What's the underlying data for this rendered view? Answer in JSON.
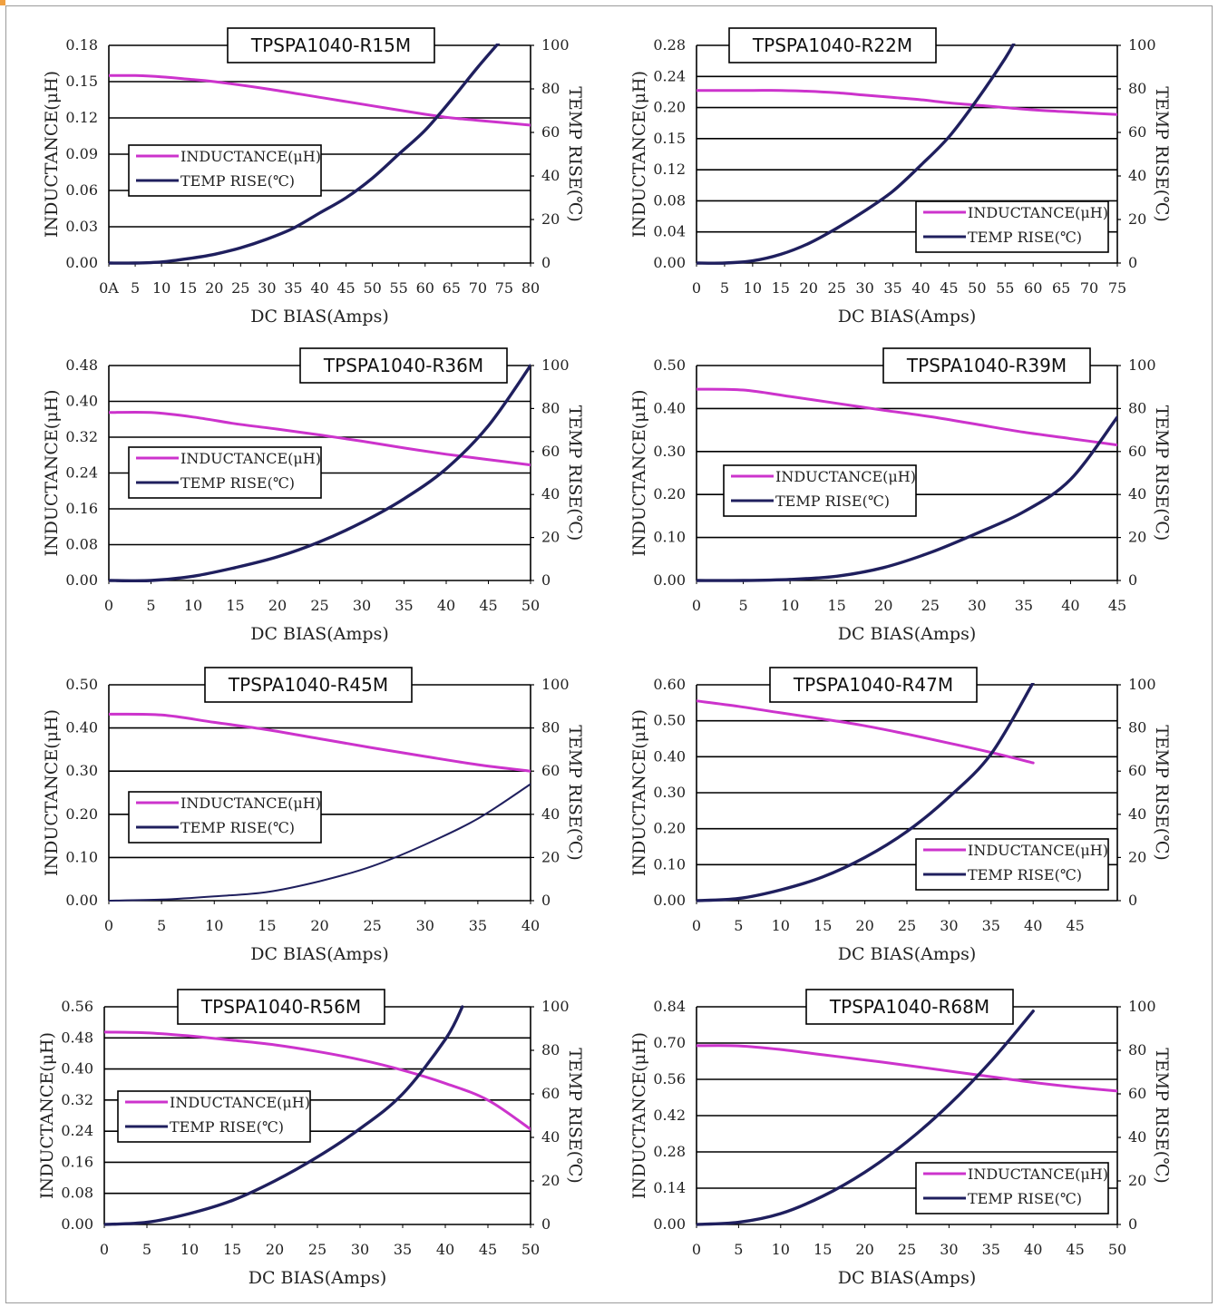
{
  "colors": {
    "inductance": "#cc33cc",
    "temp": "#1f1f5e",
    "grid": "#000000"
  },
  "chart_data": [
    {
      "type": "line",
      "title": "TPSPA1040-R15M",
      "xlabel": "DC BIAS(Amps)",
      "ylabel": "INDUCTANCE(μH)",
      "y2label": "TEMP RISE(℃)",
      "xlim": [
        0,
        80
      ],
      "ylim": [
        0,
        0.18
      ],
      "y2lim": [
        0,
        100
      ],
      "xticks": [
        "0A",
        "5",
        "10",
        "15",
        "20",
        "25",
        "30",
        "35",
        "40",
        "45",
        "50",
        "55",
        "60",
        "65",
        "70",
        "75",
        "80"
      ],
      "yticks": [
        "0.00",
        "0.03",
        "0.06",
        "0.09",
        "0.12",
        "0.15",
        "0.18"
      ],
      "y2ticks": [
        "0",
        "20",
        "40",
        "60",
        "80",
        "100"
      ],
      "legend": "left",
      "series": [
        {
          "name": "INDUCTANCE(μH)",
          "axis": "left",
          "x": [
            0,
            5,
            10,
            15,
            20,
            30,
            40,
            50,
            60,
            65,
            70,
            80
          ],
          "y": [
            0.155,
            0.155,
            0.154,
            0.152,
            0.15,
            0.144,
            0.137,
            0.13,
            0.123,
            0.12,
            0.118,
            0.114
          ]
        },
        {
          "name": "TEMP RISE(℃)",
          "axis": "right",
          "x": [
            0,
            5,
            10,
            15,
            20,
            25,
            30,
            35,
            40,
            45,
            50,
            55,
            60,
            65,
            70,
            75
          ],
          "y": [
            0,
            0,
            0.5,
            2,
            4,
            7,
            11,
            16,
            23,
            30,
            39,
            50,
            61,
            75,
            90,
            104
          ]
        }
      ]
    },
    {
      "type": "line",
      "title": "TPSPA1040-R22M",
      "xlabel": "DC BIAS(Amps)",
      "ylabel": "INDUCTANCE(μH)",
      "y2label": "TEMP RISE(℃)",
      "xlim": [
        0,
        75
      ],
      "ylim": [
        0,
        0.28
      ],
      "y2lim": [
        0,
        100
      ],
      "xticks": [
        "0",
        "5",
        "10",
        "15",
        "20",
        "25",
        "30",
        "35",
        "40",
        "45",
        "50",
        "55",
        "60",
        "65",
        "70",
        "75"
      ],
      "yticks": [
        "0.00",
        "0.04",
        "0.08",
        "0.12",
        "0.15",
        "0.20",
        "0.24",
        "0.28"
      ],
      "y2ticks": [
        "0",
        "20",
        "40",
        "60",
        "80",
        "100"
      ],
      "legend": "bottom-right",
      "series": [
        {
          "name": "INDUCTANCE(μH)",
          "axis": "left",
          "x": [
            0,
            5,
            10,
            15,
            20,
            25,
            30,
            35,
            40,
            45,
            50,
            55,
            60,
            65,
            70,
            75
          ],
          "y": [
            0.222,
            0.222,
            0.222,
            0.222,
            0.221,
            0.219,
            0.216,
            0.213,
            0.21,
            0.206,
            0.203,
            0.2,
            0.197,
            0.195,
            0.193,
            0.191
          ]
        },
        {
          "name": "TEMP RISE(℃)",
          "axis": "right",
          "x": [
            0,
            5,
            10,
            15,
            20,
            25,
            30,
            35,
            40,
            45,
            50,
            55,
            57
          ],
          "y": [
            0,
            0,
            1,
            4,
            9,
            16,
            24,
            33,
            45,
            58,
            75,
            94,
            103
          ]
        }
      ]
    },
    {
      "type": "line",
      "title": "TPSPA1040-R36M",
      "xlabel": "DC BIAS(Amps)",
      "ylabel": "INDUCTANCE(μH)",
      "y2label": "TEMP RISE(℃)",
      "xlim": [
        0,
        50
      ],
      "ylim": [
        0,
        0.48
      ],
      "y2lim": [
        0,
        100
      ],
      "xticks": [
        "0",
        "5",
        "10",
        "15",
        "20",
        "25",
        "30",
        "35",
        "40",
        "45",
        "50"
      ],
      "yticks": [
        "0.00",
        "0.08",
        "0.16",
        "0.24",
        "0.32",
        "0.40",
        "0.48"
      ],
      "y2ticks": [
        "0",
        "20",
        "40",
        "60",
        "80",
        "100"
      ],
      "legend": "left",
      "series": [
        {
          "name": "INDUCTANCE(μH)",
          "axis": "left",
          "x": [
            0,
            5,
            10,
            15,
            20,
            25,
            30,
            35,
            40,
            45,
            50
          ],
          "y": [
            0.375,
            0.375,
            0.365,
            0.35,
            0.338,
            0.325,
            0.311,
            0.296,
            0.282,
            0.27,
            0.258
          ]
        },
        {
          "name": "TEMP RISE(℃)",
          "axis": "right",
          "x": [
            0,
            5,
            10,
            15,
            20,
            25,
            30,
            35,
            40,
            45,
            50
          ],
          "y": [
            0,
            0,
            2,
            6,
            11,
            18,
            27,
            38,
            52,
            72,
            100
          ]
        }
      ]
    },
    {
      "type": "line",
      "title": "TPSPA1040-R39M",
      "xlabel": "DC BIAS(Amps)",
      "ylabel": "INDUCTANCE(μH)",
      "y2label": "TEMP RISE(℃)",
      "xlim": [
        0,
        45
      ],
      "ylim": [
        0,
        0.5
      ],
      "y2lim": [
        0,
        100
      ],
      "xticks": [
        "0",
        "5",
        "10",
        "15",
        "20",
        "25",
        "30",
        "35",
        "40",
        "45"
      ],
      "yticks": [
        "0.00",
        "0.10",
        "0.20",
        "0.30",
        "0.40",
        "0.50"
      ],
      "y2ticks": [
        "0",
        "20",
        "40",
        "60",
        "80",
        "100"
      ],
      "legend": "left",
      "series": [
        {
          "name": "INDUCTANCE(μH)",
          "axis": "left",
          "x": [
            0,
            5,
            10,
            15,
            20,
            25,
            30,
            35,
            40,
            45
          ],
          "y": [
            0.445,
            0.443,
            0.428,
            0.412,
            0.396,
            0.381,
            0.363,
            0.345,
            0.33,
            0.315
          ]
        },
        {
          "name": "TEMP RISE(℃)",
          "axis": "right",
          "x": [
            0,
            5,
            10,
            15,
            20,
            25,
            30,
            35,
            40,
            45
          ],
          "y": [
            0,
            0,
            0.5,
            2,
            6,
            13,
            22,
            32,
            47,
            76
          ]
        }
      ]
    },
    {
      "type": "line",
      "title": "TPSPA1040-R45M",
      "xlabel": "DC BIAS(Amps)",
      "ylabel": "INDUCTANCE(μH)",
      "y2label": "TEMP RISE(℃)",
      "xlim": [
        0,
        40
      ],
      "ylim": [
        0,
        0.5
      ],
      "y2lim": [
        0,
        100
      ],
      "xticks": [
        "0",
        "5",
        "10",
        "15",
        "20",
        "25",
        "30",
        "35",
        "40"
      ],
      "yticks": [
        "0.00",
        "0.10",
        "0.20",
        "0.30",
        "0.40",
        "0.50"
      ],
      "y2ticks": [
        "0",
        "20",
        "40",
        "60",
        "80",
        "100"
      ],
      "legend": "left",
      "series": [
        {
          "name": "INDUCTANCE(μH)",
          "axis": "left",
          "x": [
            0,
            5,
            10,
            15,
            20,
            25,
            30,
            35,
            40
          ],
          "y": [
            0.432,
            0.43,
            0.413,
            0.396,
            0.375,
            0.354,
            0.334,
            0.315,
            0.3
          ]
        },
        {
          "name": "TEMP RISE(℃)",
          "axis": "right",
          "x": [
            0,
            5,
            10,
            15,
            20,
            25,
            30,
            35,
            40
          ],
          "y": [
            0,
            0.5,
            2,
            4,
            9,
            16,
            26,
            38,
            54
          ]
        }
      ]
    },
    {
      "type": "line",
      "title": "TPSPA1040-R47M",
      "xlabel": "DC BIAS(Amps)",
      "ylabel": "INDUCTANCE(μH)",
      "y2label": "TEMP RISE(℃)",
      "xlim": [
        0,
        50
      ],
      "ylim": [
        0,
        0.6
      ],
      "y2lim": [
        0,
        100
      ],
      "xticks": [
        "0",
        "5",
        "10",
        "15",
        "20",
        "25",
        "30",
        "35",
        "40",
        "45"
      ],
      "yticks": [
        "0.00",
        "0.10",
        "0.20",
        "0.30",
        "0.40",
        "0.50",
        "0.60"
      ],
      "y2ticks": [
        "0",
        "20",
        "40",
        "60",
        "80",
        "100"
      ],
      "legend": "bottom-right",
      "series": [
        {
          "name": "INDUCTANCE(μH)",
          "axis": "left",
          "x": [
            0,
            5,
            10,
            15,
            20,
            25,
            30,
            35,
            40
          ],
          "y": [
            0.555,
            0.54,
            0.522,
            0.505,
            0.486,
            0.463,
            0.438,
            0.412,
            0.383
          ]
        },
        {
          "name": "TEMP RISE(℃)",
          "axis": "right",
          "x": [
            0,
            5,
            10,
            15,
            20,
            25,
            30,
            35,
            40
          ],
          "y": [
            0,
            1,
            5,
            11,
            20,
            32,
            48,
            68,
            101
          ]
        }
      ]
    },
    {
      "type": "line",
      "title": "TPSPA1040-R56M",
      "xlabel": "DC BIAS(Amps)",
      "ylabel": "INDUCTANCE(μH)",
      "y2label": "TEMP RISE(℃)",
      "xlim": [
        0,
        50
      ],
      "ylim": [
        0,
        0.56
      ],
      "y2lim": [
        0,
        100
      ],
      "xticks": [
        "0",
        "5",
        "10",
        "15",
        "20",
        "25",
        "30",
        "35",
        "40",
        "45",
        "50"
      ],
      "yticks": [
        "0.00",
        "0.08",
        "0.16",
        "0.24",
        "0.32",
        "0.40",
        "0.48",
        "0.56"
      ],
      "y2ticks": [
        "0",
        "20",
        "40",
        "60",
        "80",
        "100"
      ],
      "legend": "left",
      "series": [
        {
          "name": "INDUCTANCE(μH)",
          "axis": "left",
          "x": [
            0,
            5,
            10,
            15,
            20,
            25,
            30,
            35,
            40,
            45,
            50
          ],
          "y": [
            0.495,
            0.493,
            0.485,
            0.474,
            0.462,
            0.445,
            0.424,
            0.397,
            0.363,
            0.32,
            0.245
          ]
        },
        {
          "name": "TEMP RISE(℃)",
          "axis": "right",
          "x": [
            0,
            5,
            10,
            15,
            20,
            25,
            30,
            35,
            40,
            42
          ],
          "y": [
            0,
            1,
            5,
            11,
            20,
            31,
            44,
            60,
            85,
            100
          ]
        }
      ]
    },
    {
      "type": "line",
      "title": "TPSPA1040-R68M",
      "xlabel": "DC BIAS(Amps)",
      "ylabel": "INDUCTANCE(μH)",
      "y2label": "TEMP RISE(℃)",
      "xlim": [
        0,
        50
      ],
      "ylim": [
        0,
        0.84
      ],
      "y2lim": [
        0,
        100
      ],
      "xticks": [
        "0",
        "5",
        "10",
        "15",
        "20",
        "25",
        "30",
        "35",
        "40",
        "45",
        "50"
      ],
      "yticks": [
        "0.00",
        "0.14",
        "0.28",
        "0.42",
        "0.56",
        "0.70",
        "0.84"
      ],
      "y2ticks": [
        "0",
        "20",
        "40",
        "60",
        "80",
        "100"
      ],
      "legend": "bottom-right",
      "series": [
        {
          "name": "INDUCTANCE(μH)",
          "axis": "left",
          "x": [
            0,
            5,
            10,
            15,
            20,
            25,
            30,
            35,
            40,
            45,
            50
          ],
          "y": [
            0.69,
            0.689,
            0.675,
            0.655,
            0.635,
            0.614,
            0.592,
            0.57,
            0.548,
            0.53,
            0.515
          ]
        },
        {
          "name": "TEMP RISE(℃)",
          "axis": "right",
          "x": [
            0,
            5,
            10,
            15,
            20,
            25,
            30,
            35,
            40
          ],
          "y": [
            0,
            1,
            5,
            13,
            24,
            38,
            55,
            75,
            98
          ]
        }
      ]
    }
  ]
}
